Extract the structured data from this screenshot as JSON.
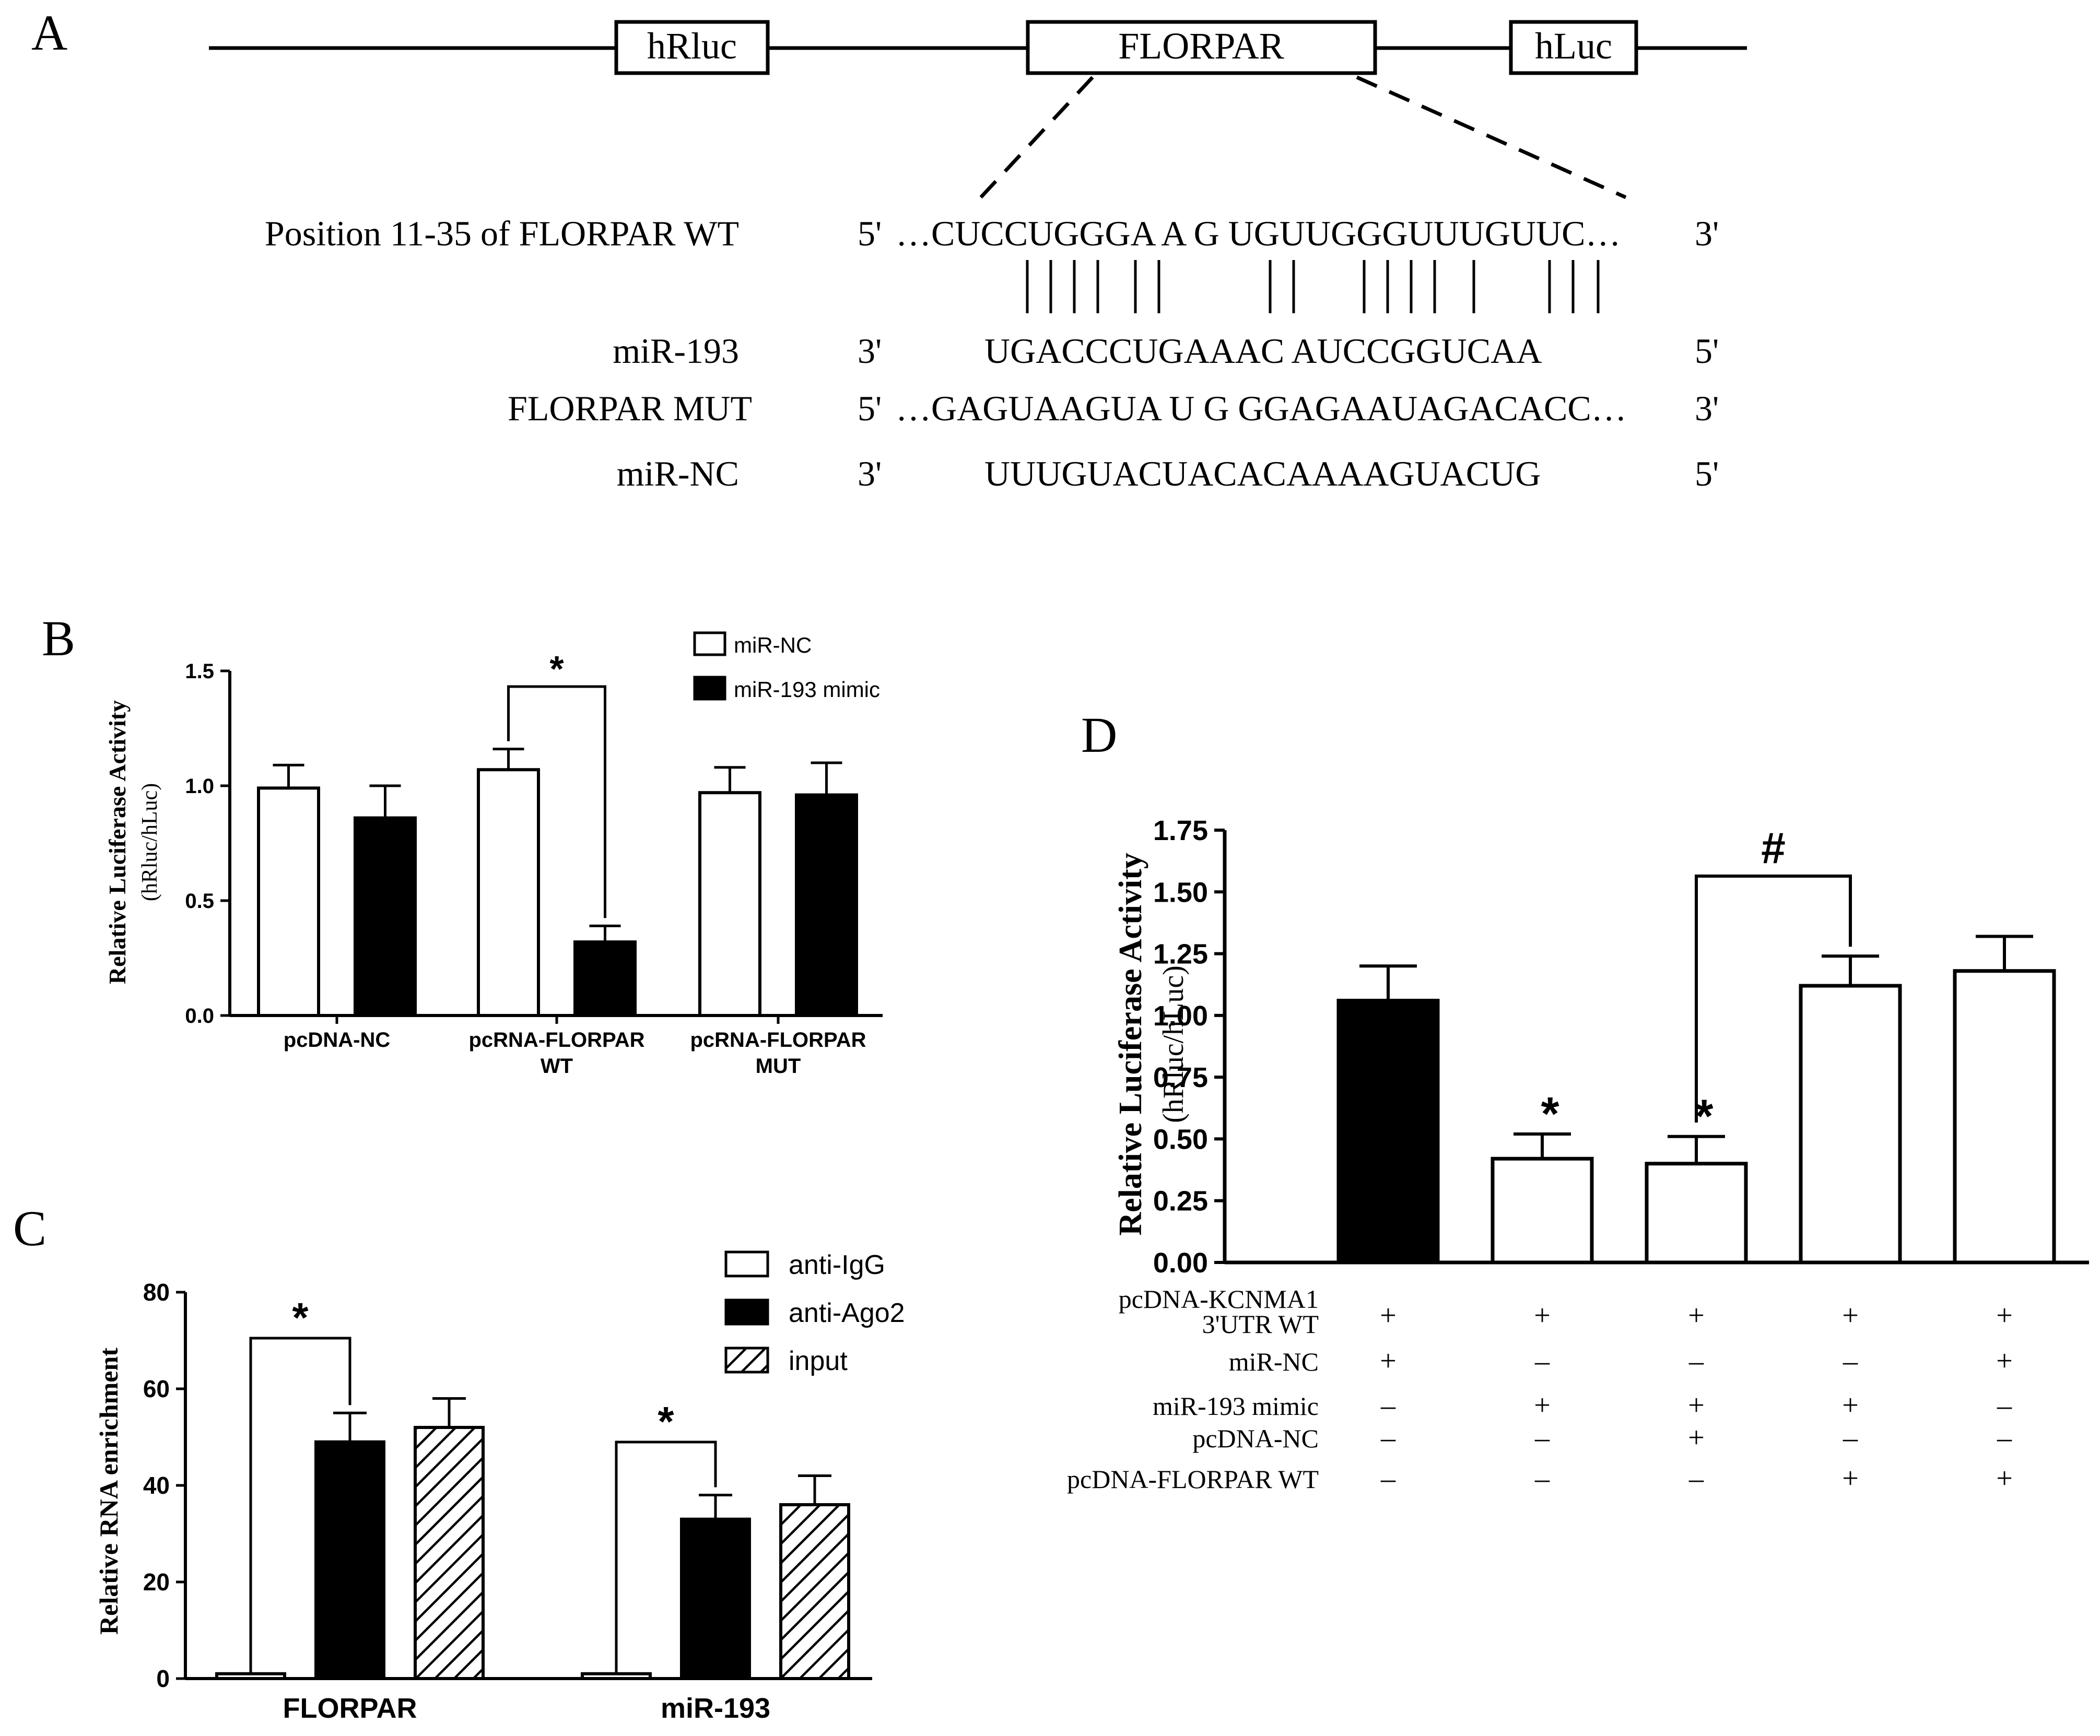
{
  "panel_labels": {
    "a": "A",
    "b": "B",
    "c": "C",
    "d": "D"
  },
  "construct": {
    "box1": "hRluc",
    "box2": "FLORPAR",
    "box3": "hLuc"
  },
  "sequences": [
    {
      "label": "Position 11-35 of FLORPAR WT",
      "five": "5'",
      "seq": "…CUCCUGGGA A G UGUUGGGUUUGUUC…",
      "three": "3'"
    },
    {
      "label": "miR-193",
      "five": "3'",
      "seq": "UGACCCUGAAAC AUCCGGUCAA",
      "three": "5'"
    },
    {
      "label": "FLORPAR MUT",
      "five": "5'",
      "seq": "…GAGUAAGUA U G GGAGAAUAGACACC…",
      "three": "3'"
    },
    {
      "label": "miR-NC",
      "five": "3'",
      "seq": "UUUGUACUACACAAAAGUACUG",
      "three": "5'"
    }
  ],
  "colors": {
    "black": "#000000",
    "white": "#ffffff"
  },
  "chart_data": [
    {
      "panel": "B",
      "type": "bar",
      "ylabel": "Relative Luciferase Activity",
      "ylabel2": "(hRluc/hLuc)",
      "ylim": [
        0,
        1.5
      ],
      "yticks": [
        "0.0",
        "0.5",
        "1.0",
        "1.5"
      ],
      "categories": [
        [
          "pcDNA-NC"
        ],
        [
          "pcRNA-FLORPAR",
          "WT"
        ],
        [
          "pcRNA-FLORPAR",
          "MUT"
        ]
      ],
      "series": [
        {
          "name": "miR-NC",
          "fill": "white",
          "values": [
            0.99,
            1.07,
            0.97
          ],
          "errors": [
            0.1,
            0.09,
            0.11
          ]
        },
        {
          "name": "miR-193 mimic",
          "fill": "black",
          "values": [
            0.86,
            0.32,
            0.96
          ],
          "errors": [
            0.14,
            0.07,
            0.14
          ]
        }
      ],
      "significance": [
        {
          "mark": "*",
          "from": "pcRNA-FLORPAR WT / miR-NC",
          "to": "pcRNA-FLORPAR WT / miR-193 mimic"
        }
      ],
      "legend": "top-right"
    },
    {
      "panel": "C",
      "type": "bar",
      "ylabel": "Relative RNA enrichment",
      "ylim": [
        0,
        80
      ],
      "yticks": [
        "0",
        "20",
        "40",
        "60",
        "80"
      ],
      "categories": [
        "FLORPAR",
        "miR-193"
      ],
      "series": [
        {
          "name": "anti-IgG",
          "fill": "white",
          "values": [
            1,
            1
          ],
          "errors": [
            0,
            0
          ]
        },
        {
          "name": "anti-Ago2",
          "fill": "black",
          "values": [
            49,
            33
          ],
          "errors": [
            6,
            5
          ]
        },
        {
          "name": "input",
          "fill": "hatched",
          "values": [
            52,
            36
          ],
          "errors": [
            6,
            6
          ]
        }
      ],
      "significance": [
        {
          "mark": "*",
          "from": "FLORPAR / anti-IgG",
          "to": "FLORPAR / anti-Ago2"
        },
        {
          "mark": "*",
          "from": "miR-193 / anti-IgG",
          "to": "miR-193 / anti-Ago2"
        }
      ],
      "legend": "top-right"
    },
    {
      "panel": "D",
      "type": "bar",
      "ylabel": "Relative Luciferase Activity",
      "ylabel2": "(hRluc/hLuc)",
      "ylim": [
        0,
        1.75
      ],
      "yticks": [
        "0.00",
        "0.25",
        "0.50",
        "0.75",
        "1.00",
        "1.25",
        "1.50",
        "1.75"
      ],
      "bars": [
        {
          "value": 1.06,
          "error": 0.14,
          "fill": "black",
          "mark": ""
        },
        {
          "value": 0.42,
          "error": 0.1,
          "fill": "white",
          "mark": "*"
        },
        {
          "value": 0.4,
          "error": 0.11,
          "fill": "white",
          "mark": "*"
        },
        {
          "value": 1.12,
          "error": 0.12,
          "fill": "white",
          "mark": ""
        },
        {
          "value": 1.18,
          "error": 0.14,
          "fill": "white",
          "mark": ""
        }
      ],
      "bracket": {
        "mark": "#",
        "from_bar": 3,
        "to_bar": 4
      },
      "conditions": [
        {
          "label": [
            "pcDNA-KCNMA1",
            "3'UTR WT"
          ],
          "values": [
            "+",
            "+",
            "+",
            "+",
            "+"
          ]
        },
        {
          "label": [
            "miR-NC"
          ],
          "values": [
            "+",
            "–",
            "–",
            "–",
            "+"
          ]
        },
        {
          "label": [
            "miR-193 mimic"
          ],
          "values": [
            "–",
            "+",
            "+",
            "+",
            "–"
          ]
        },
        {
          "label": [
            "pcDNA-NC"
          ],
          "values": [
            "–",
            "–",
            "+",
            "–",
            "–"
          ]
        },
        {
          "label": [
            "pcDNA-FLORPAR WT"
          ],
          "values": [
            "–",
            "–",
            "–",
            "+",
            "+"
          ]
        }
      ]
    }
  ]
}
